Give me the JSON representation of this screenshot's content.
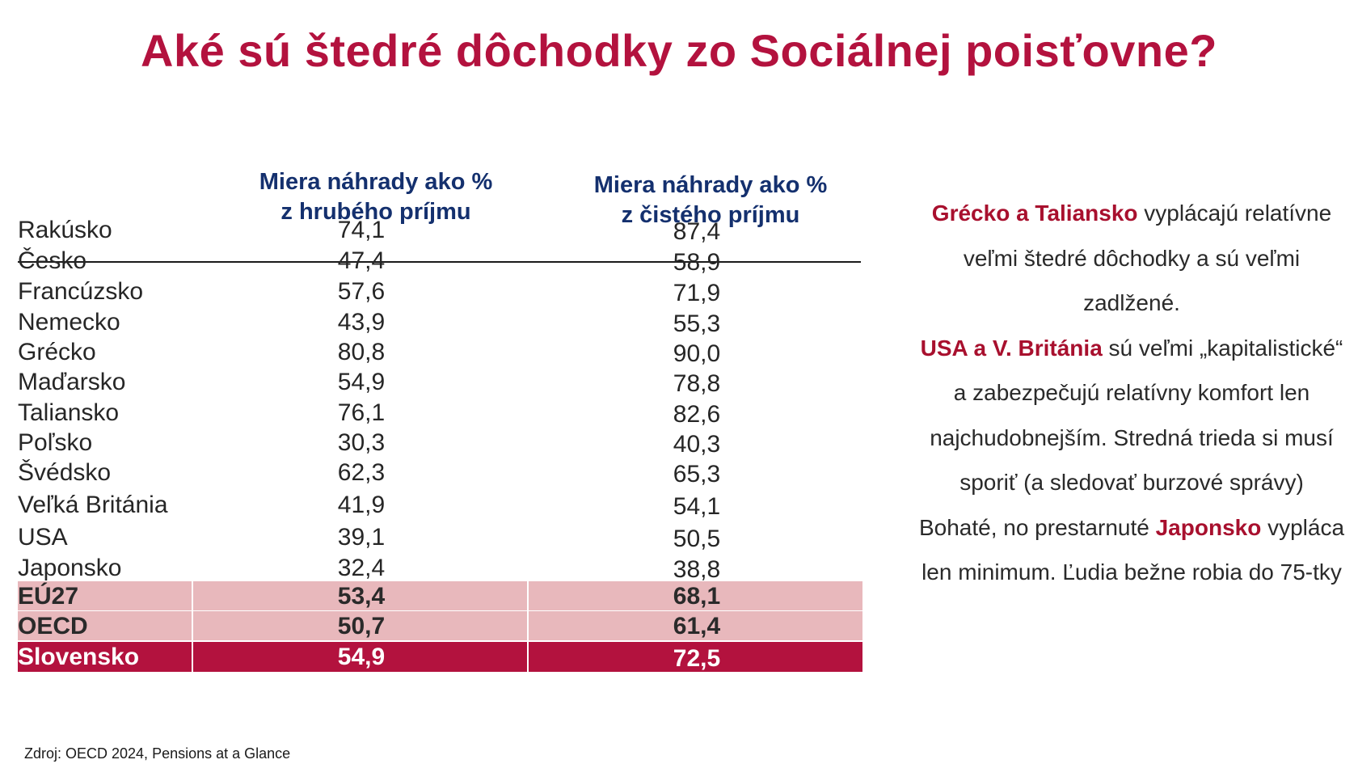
{
  "title": "Aké sú štedré dôchodky zo Sociálnej poisťovne?",
  "table": {
    "headers": {
      "gross_line1": "Miera náhrady ako %",
      "gross_line2": "z hrubého príjmu",
      "net_line1": "Miera náhrady ako %",
      "net_line2": "z čistého príjmu"
    },
    "rows": [
      {
        "country": "Rakúsko",
        "gross": "74,1",
        "net": "87,4"
      },
      {
        "country": "Česko",
        "gross": "47,4",
        "net": "58,9"
      },
      {
        "country": "Francúzsko",
        "gross": "57,6",
        "net": "71,9"
      },
      {
        "country": "Nemecko",
        "gross": "43,9",
        "net": "55,3"
      },
      {
        "country": "Grécko",
        "gross": "80,8",
        "net": "90,0"
      },
      {
        "country": "Maďarsko",
        "gross": "54,9",
        "net": "78,8"
      },
      {
        "country": "Taliansko",
        "gross": "76,1",
        "net": "82,6"
      },
      {
        "country": "Poľsko",
        "gross": "30,3",
        "net": "40,3"
      },
      {
        "country": "Švédsko",
        "gross": "62,3",
        "net": "65,3"
      },
      {
        "country": "Veľká Británia",
        "gross": "41,9",
        "net": "54,1"
      },
      {
        "country": "USA",
        "gross": "39,1",
        "net": "50,5"
      },
      {
        "country": "Japonsko",
        "gross": "32,4",
        "net": "38,8"
      }
    ],
    "highlighted": [
      {
        "country": "EÚ27",
        "gross": "53,4",
        "net": "68,1"
      },
      {
        "country": "OECD",
        "gross": "50,7",
        "net": "61,4"
      }
    ],
    "slovakia": {
      "country": "Slovensko",
      "gross": "54,9",
      "net": "72,5"
    }
  },
  "source": "Zdroj: OECD 2024, Pensions at a Glance",
  "commentary": {
    "p1_em": "Grécko a Taliansko",
    "p1_rest": " vyplácajú relatívne veľmi štedré dôchodky a sú veľmi zadlžené.",
    "p2_em": "USA a V. Británia",
    "p2_rest": " sú veľmi „kapitalistické“ a zabezpečujú relatívny komfort len najchudobnejším. Stredná trieda si musí sporiť (a sledovať burzové správy)",
    "p3_start": "Bohaté, no prestarnuté ",
    "p3_em": "Japonsko",
    "p3_rest": " vypláca len minimum. Ľudia bežne robia do 75-tky"
  },
  "colors": {
    "accent": "#b3123e",
    "header_blue": "#14306e",
    "highlight_pink": "#e8b8bc"
  }
}
